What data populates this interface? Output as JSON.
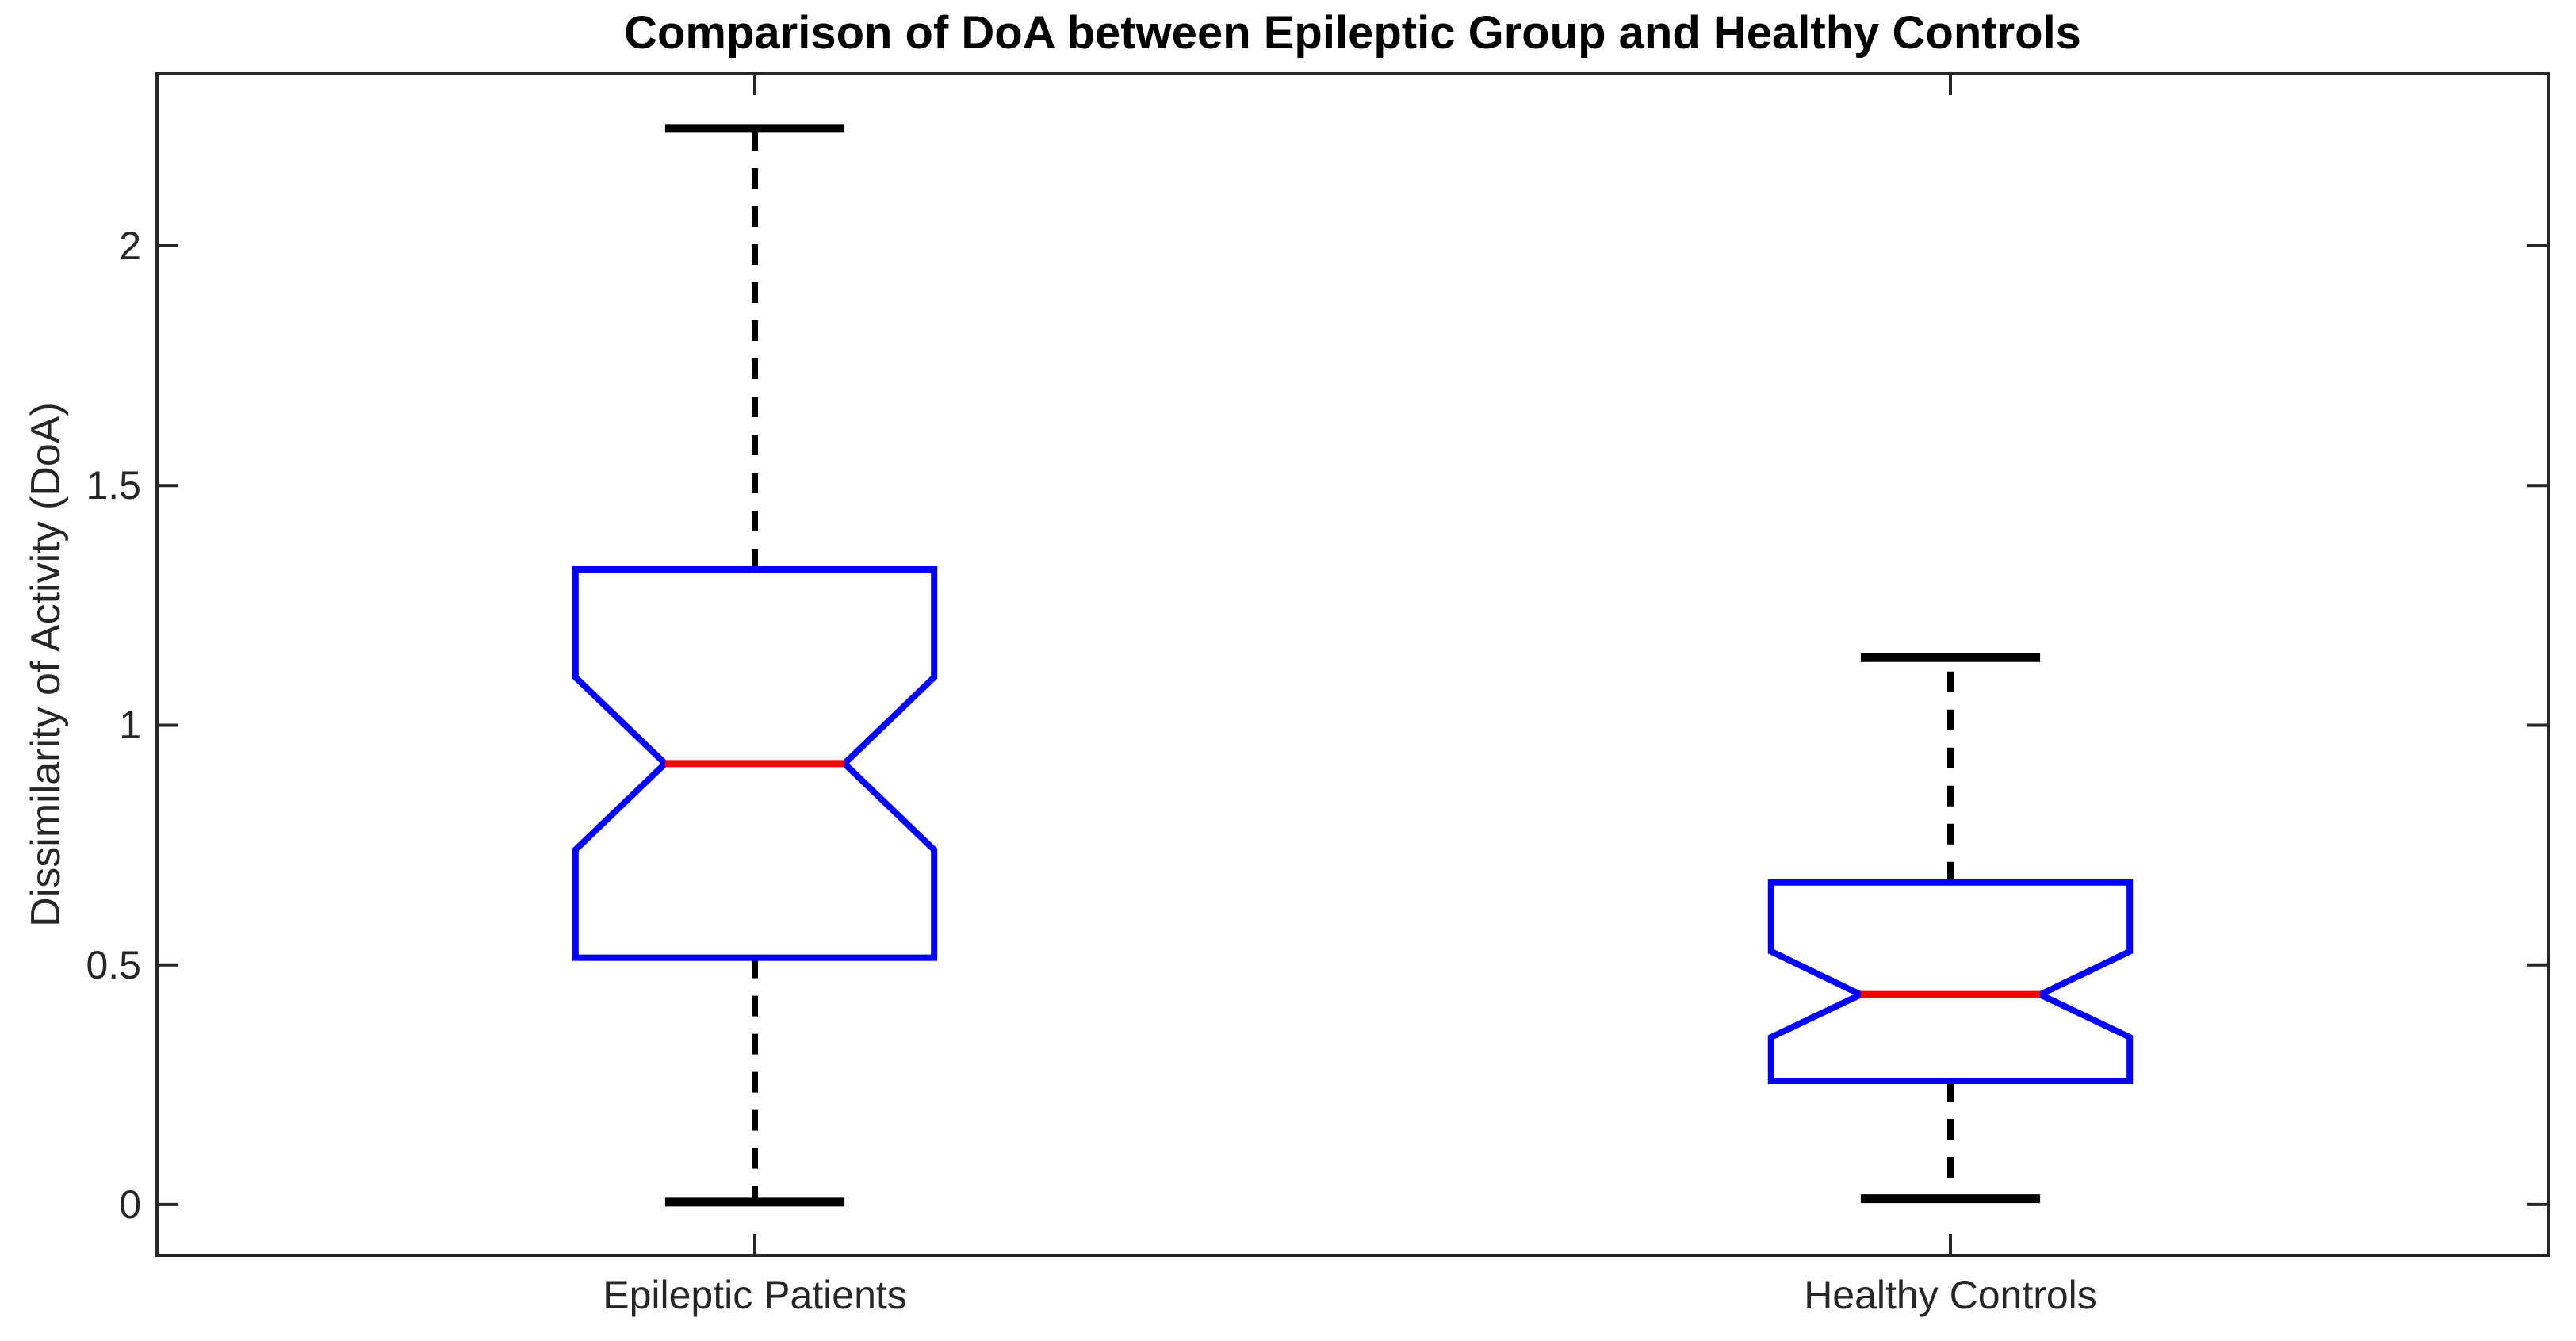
{
  "chart_data": {
    "type": "boxplot",
    "title": "Comparison of DoA between Epileptic Group and Healthy Controls",
    "xlabel": "",
    "ylabel": "Dissimilarity of Activity (DoA)",
    "categories": [
      "Epileptic Patients",
      "Healthy Controls"
    ],
    "xticks": [
      1,
      2
    ],
    "xlim": [
      0.5,
      2.5
    ],
    "yticks": [
      0,
      0.5,
      1,
      1.5,
      2
    ],
    "ytick_labels": [
      "0",
      "0.5",
      "1",
      "1.5",
      "2"
    ],
    "ylim": [
      -0.106,
      2.359
    ],
    "grid": false,
    "notched": true,
    "legend": "none",
    "series": [
      {
        "name": "Epileptic Patients",
        "x": 1,
        "whisker_low": 0.005,
        "q1": 0.515,
        "median": 0.92,
        "q3": 1.325,
        "whisker_high": 2.245,
        "notch_low": 0.74,
        "notch_high": 1.1,
        "outliers": []
      },
      {
        "name": "Healthy Controls",
        "x": 2,
        "whisker_low": 0.012,
        "q1": 0.258,
        "median": 0.438,
        "q3": 0.672,
        "whisker_high": 1.141,
        "notch_low": 0.349,
        "notch_high": 0.528,
        "outliers": []
      }
    ],
    "style": {
      "box_width_units": 0.3,
      "cap_width_units": 0.15,
      "box_color": "#0000ff",
      "median_color": "#ff0000",
      "whisker_color": "#000000",
      "axis_color": "#262626",
      "title_color": "#000000",
      "background": "#ffffff"
    }
  }
}
